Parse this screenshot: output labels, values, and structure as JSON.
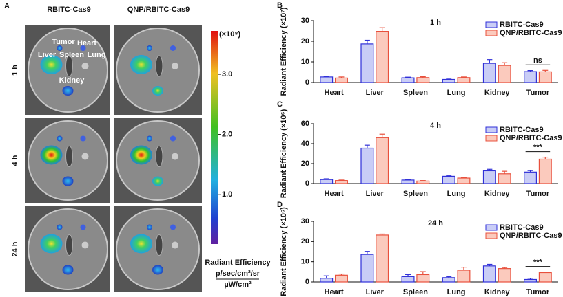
{
  "panel_a": {
    "label": "A",
    "columns": [
      "RBITC-Cas9",
      "QNP/RBITC-Cas9"
    ],
    "rows": [
      "1 h",
      "4 h",
      "24 h"
    ],
    "organs": [
      "Tumor",
      "Heart",
      "Liver",
      "Spleen",
      "Lung",
      "Kidney"
    ],
    "colorbar": {
      "unit": "(×10⁸)",
      "lim": [
        0.18,
        3.72
      ],
      "ticks": [
        {
          "value": 3,
          "label": "3.0"
        },
        {
          "value": 2,
          "label": "2.0"
        },
        {
          "value": 1,
          "label": "1.0"
        }
      ],
      "title": "Radiant Efficiency",
      "unit_top": "p/sec/cm²/sr",
      "unit_bottom": "µW/cm²"
    }
  },
  "chart_data": [
    {
      "type": "bar",
      "panel": "B",
      "title": "1 h",
      "y_label": "Radiant Efficiency (×10⁷)",
      "categories": [
        "Heart",
        "Liver",
        "Spleen",
        "Lung",
        "Kidney",
        "Tumor"
      ],
      "series": [
        {
          "name": "RBITC-Cas9",
          "color": "#3030d8",
          "fill": "#c9cdf6",
          "values": [
            2.7,
            18.7,
            2.3,
            1.5,
            9.3,
            5.3
          ],
          "errors": [
            0.3,
            1.8,
            0.3,
            0.2,
            1.8,
            0.5
          ]
        },
        {
          "name": "QNP/RBITC-Cas9",
          "color": "#e8503c",
          "fill": "#fbcabd",
          "values": [
            2.2,
            24.8,
            2.4,
            2.4,
            8.3,
            5.2
          ],
          "errors": [
            0.5,
            1.8,
            0.4,
            0.3,
            1.3,
            0.7
          ]
        }
      ],
      "ylim": [
        0,
        30
      ],
      "yticks": [
        0,
        10,
        20,
        30
      ],
      "annotation": "ns"
    },
    {
      "type": "bar",
      "panel": "C",
      "title": "4 h",
      "y_label": "Radiant Efficiency (×10⁶)",
      "categories": [
        "Heart",
        "Liver",
        "Spleen",
        "Lung",
        "Kidney",
        "Tumor"
      ],
      "series": [
        {
          "name": "RBITC-Cas9",
          "color": "#3030d8",
          "fill": "#c9cdf6",
          "values": [
            4,
            35.5,
            3.5,
            7.3,
            12.8,
            11.5
          ],
          "errors": [
            0.8,
            3,
            0.6,
            0.5,
            1.5,
            1.5
          ]
        },
        {
          "name": "QNP/RBITC-Cas9",
          "color": "#e8503c",
          "fill": "#fbcabd",
          "values": [
            3,
            46,
            2.5,
            5.5,
            9.8,
            24.5
          ],
          "errors": [
            0.5,
            3.5,
            0.5,
            0.6,
            2.5,
            2
          ]
        }
      ],
      "ylim": [
        0,
        60
      ],
      "yticks": [
        0,
        20,
        40,
        60
      ],
      "annotation": "***"
    },
    {
      "type": "bar",
      "panel": "D",
      "title": "24 h",
      "y_label": "Radiant Efficiency (×10⁶)",
      "categories": [
        "Heart",
        "Liver",
        "Spleen",
        "Lung",
        "Kidney",
        "Tumor"
      ],
      "series": [
        {
          "name": "RBITC-Cas9",
          "color": "#3030d8",
          "fill": "#c9cdf6",
          "values": [
            1.8,
            13.6,
            2.6,
            2.1,
            7.9,
            1.2
          ],
          "errors": [
            1.2,
            1.5,
            1,
            0.5,
            0.8,
            0.6
          ]
        },
        {
          "name": "QNP/RBITC-Cas9",
          "color": "#e8503c",
          "fill": "#fbcabd",
          "values": [
            3.3,
            23.2,
            3.6,
            5.8,
            6.6,
            4.6
          ],
          "errors": [
            0.6,
            0.5,
            1.5,
            1.5,
            0.5,
            0.3
          ]
        }
      ],
      "ylim": [
        0,
        30
      ],
      "yticks": [
        0,
        10,
        20,
        30
      ],
      "annotation": "***"
    }
  ]
}
